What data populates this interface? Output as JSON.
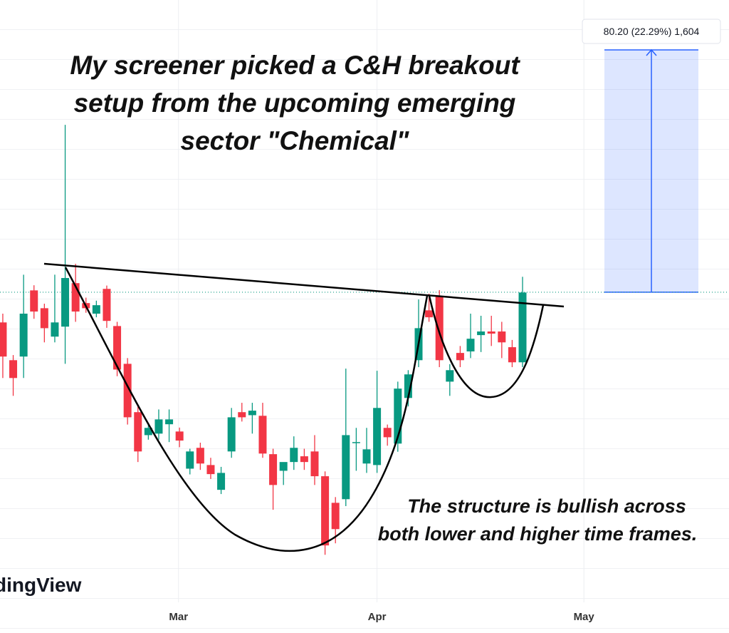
{
  "chart_data": {
    "type": "candlestick",
    "title_lines": [
      "My screener picked a C&H breakout",
      "setup from the upcoming emerging",
      "sector \"Chemical\""
    ],
    "note_lines": [
      "The structure is bullish across",
      "both lower and higher time frames."
    ],
    "watermark": "dingView",
    "up_color": "#089981",
    "down_color": "#f23645",
    "xlim": [
      -0.27,
      69.86
    ],
    "xticks": [
      {
        "value": 16.9,
        "label": "Mar"
      },
      {
        "value": 36.0,
        "label": "Apr"
      },
      {
        "value": 55.9,
        "label": "May"
      }
    ],
    "ylim": [
      260.7,
      456.5
    ],
    "breakout_level": 359.8,
    "measure": {
      "from": 359.8,
      "to": 440.0,
      "label": "80.20 (22.29%) 1,604"
    },
    "x": [
      0,
      1,
      2,
      3,
      4,
      5,
      6,
      7,
      8,
      9,
      10,
      11,
      12,
      13,
      14,
      15,
      16,
      17,
      18,
      19,
      20,
      21,
      22,
      23,
      24,
      25,
      26,
      27,
      28,
      29,
      30,
      31,
      32,
      33,
      34,
      35,
      36,
      37,
      38,
      39,
      40,
      41,
      42,
      43,
      44,
      45,
      46,
      47,
      48,
      49,
      50
    ],
    "open": [
      349.8,
      337.3,
      338.5,
      360.4,
      354.5,
      345.1,
      348.4,
      362.8,
      356.2,
      352.7,
      360.9,
      348.6,
      336.1,
      320.1,
      312.5,
      313.0,
      316.1,
      313.7,
      301.4,
      308.3,
      302.6,
      294.4,
      307.1,
      320.1,
      319.1,
      318.9,
      306.2,
      300.7,
      303.6,
      305.5,
      307.1,
      298.9,
      290.1,
      291.3,
      310.2,
      303.1,
      302.6,
      314.9,
      309.7,
      324.8,
      337.3,
      353.8,
      358.6,
      330.2,
      339.7,
      340.2,
      345.6,
      346.8,
      346.8,
      341.6,
      336.6
    ],
    "high": [
      352.7,
      339.0,
      365.6,
      362.1,
      356.0,
      365.6,
      415.2,
      369.2,
      358.0,
      357.0,
      362.0,
      350.0,
      338.0,
      322.0,
      316.0,
      321.0,
      321.0,
      315.0,
      308.0,
      310.0,
      305.0,
      302.0,
      321.5,
      323.2,
      323.2,
      323.2,
      308.0,
      303.0,
      312.1,
      308.0,
      312.5,
      300.5,
      292.0,
      334.5,
      314.9,
      314.9,
      333.8,
      316.0,
      330.2,
      334.0,
      357.4,
      359.3,
      360.5,
      336.0,
      342.0,
      352.7,
      352.0,
      352.0,
      350.0,
      344.0,
      364.9
    ],
    "low": [
      331.4,
      325.5,
      331.4,
      351.0,
      343.2,
      343.2,
      336.1,
      350.0,
      353.0,
      351.5,
      348.0,
      332.0,
      316.0,
      303.6,
      311.0,
      311.0,
      310.2,
      308.5,
      299.5,
      301.0,
      298.0,
      293.0,
      305.0,
      317.0,
      313.0,
      305.0,
      287.8,
      296.0,
      301.0,
      301.0,
      296.0,
      272.9,
      276.7,
      289.0,
      300.7,
      300.0,
      300.0,
      309.0,
      307.0,
      322.0,
      335.0,
      350.0,
      335.0,
      325.5,
      335.0,
      338.0,
      340.0,
      342.0,
      338.0,
      335.0,
      335.0
    ],
    "close": [
      338.5,
      331.4,
      352.7,
      353.4,
      347.9,
      349.8,
      364.5,
      353.4,
      354.5,
      355.5,
      350.3,
      334.2,
      318.4,
      307.1,
      314.9,
      317.7,
      317.7,
      310.7,
      307.1,
      303.1,
      299.6,
      300.0,
      318.4,
      318.4,
      320.6,
      306.4,
      296.0,
      303.6,
      308.3,
      303.6,
      298.9,
      276.0,
      281.4,
      312.5,
      310.2,
      307.8,
      321.5,
      311.8,
      327.9,
      332.6,
      347.9,
      351.5,
      337.3,
      334.0,
      337.3,
      344.4,
      346.8,
      346.1,
      343.2,
      336.6,
      359.7
    ]
  }
}
